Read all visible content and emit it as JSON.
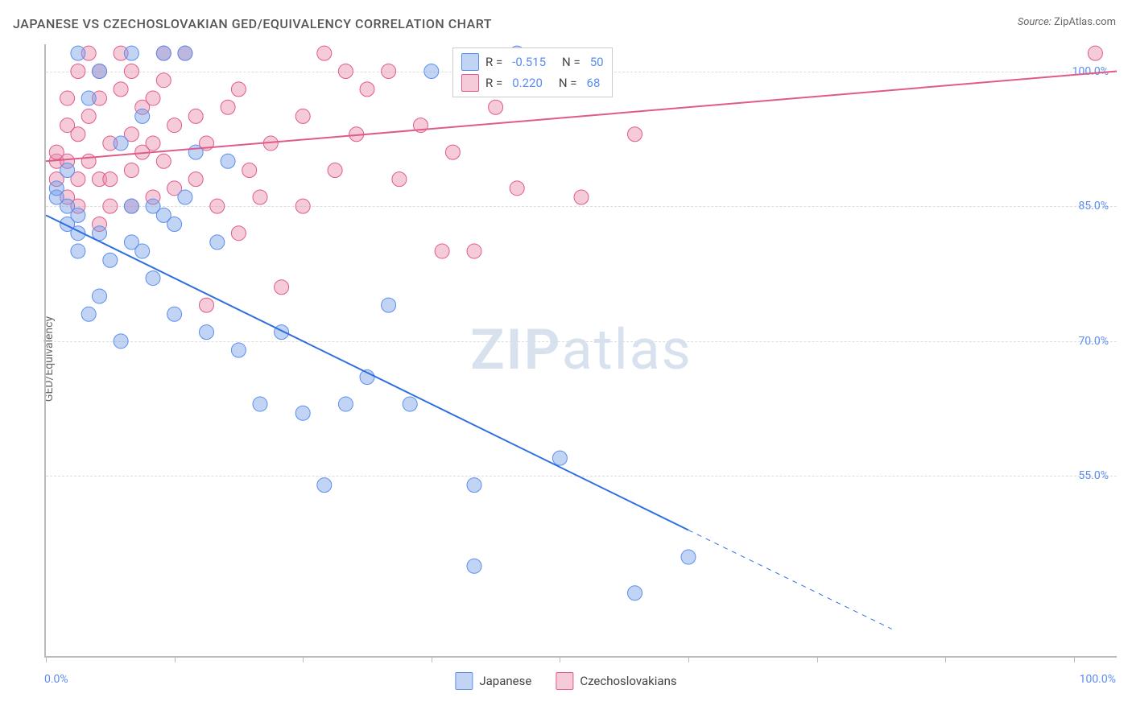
{
  "meta": {
    "title": "JAPANESE VS CZECHOSLOVAKIAN GED/EQUIVALENCY CORRELATION CHART",
    "source_label": "Source:",
    "source_name": "ZipAtlas.com",
    "watermark_a": "ZIP",
    "watermark_b": "atlas"
  },
  "chart": {
    "type": "scatter",
    "ylabel": "GED/Equivalency",
    "xlim": [
      0,
      100
    ],
    "ylim": [
      35,
      103
    ],
    "x_tick_positions": [
      0,
      12,
      24,
      36,
      48,
      60,
      72,
      84,
      96
    ],
    "x_tick_labels": {
      "left": "0.0%",
      "right": "100.0%"
    },
    "y_ticks": [
      {
        "v": 55,
        "label": "55.0%"
      },
      {
        "v": 70,
        "label": "70.0%"
      },
      {
        "v": 85,
        "label": "85.0%"
      },
      {
        "v": 100,
        "label": "100.0%"
      }
    ],
    "background_color": "#ffffff",
    "grid_color": "#dddddd",
    "axis_color": "#bbbbbb",
    "tick_label_color": "#5b8def",
    "marker_radius": 9,
    "marker_stroke_width": 1,
    "series": {
      "japanese": {
        "label": "Japanese",
        "color_fill": "rgba(120,160,230,0.45)",
        "color_stroke": "#5b8def",
        "R": "-0.515",
        "N": "50",
        "trend": {
          "color": "#2d6fe0",
          "width": 2,
          "x1": 0,
          "y1": 84,
          "x2": 60,
          "y2": 49,
          "dash_x2": 79,
          "dash_y2": 38
        },
        "points": [
          [
            1,
            86
          ],
          [
            1,
            87
          ],
          [
            2,
            85
          ],
          [
            2,
            89
          ],
          [
            3,
            102
          ],
          [
            3,
            84
          ],
          [
            3,
            80
          ],
          [
            4,
            97
          ],
          [
            5,
            100
          ],
          [
            5,
            82
          ],
          [
            5,
            75
          ],
          [
            6,
            79
          ],
          [
            7,
            92
          ],
          [
            8,
            102
          ],
          [
            8,
            81
          ],
          [
            8,
            85
          ],
          [
            9,
            95
          ],
          [
            9,
            80
          ],
          [
            10,
            77
          ],
          [
            10,
            85
          ],
          [
            11,
            102
          ],
          [
            11,
            84
          ],
          [
            12,
            83
          ],
          [
            12,
            73
          ],
          [
            13,
            102
          ],
          [
            13,
            86
          ],
          [
            14,
            91
          ],
          [
            15,
            71
          ],
          [
            16,
            81
          ],
          [
            17,
            90
          ],
          [
            18,
            69
          ],
          [
            4,
            73
          ],
          [
            20,
            63
          ],
          [
            22,
            71
          ],
          [
            24,
            62
          ],
          [
            26,
            54
          ],
          [
            28,
            63
          ],
          [
            30,
            66
          ],
          [
            32,
            74
          ],
          [
            34,
            63
          ],
          [
            36,
            100
          ],
          [
            40,
            45
          ],
          [
            40,
            54
          ],
          [
            44,
            102
          ],
          [
            48,
            57
          ],
          [
            55,
            42
          ],
          [
            60,
            46
          ],
          [
            7,
            70
          ],
          [
            2,
            83
          ],
          [
            3,
            82
          ]
        ]
      },
      "czech": {
        "label": "Czechoslovakians",
        "color_fill": "rgba(235,140,170,0.45)",
        "color_stroke": "#e05a8a",
        "R": "0.220",
        "N": "68",
        "trend": {
          "color": "#e05a8a",
          "width": 2,
          "x1": 0,
          "y1": 90,
          "x2": 100,
          "y2": 100
        },
        "points": [
          [
            1,
            88
          ],
          [
            1,
            90
          ],
          [
            1,
            91
          ],
          [
            2,
            94
          ],
          [
            2,
            97
          ],
          [
            2,
            90
          ],
          [
            2,
            86
          ],
          [
            3,
            93
          ],
          [
            3,
            88
          ],
          [
            3,
            100
          ],
          [
            4,
            102
          ],
          [
            4,
            95
          ],
          [
            4,
            90
          ],
          [
            5,
            97
          ],
          [
            5,
            100
          ],
          [
            5,
            88
          ],
          [
            6,
            92
          ],
          [
            6,
            88
          ],
          [
            7,
            98
          ],
          [
            7,
            102
          ],
          [
            8,
            85
          ],
          [
            8,
            100
          ],
          [
            8,
            89
          ],
          [
            9,
            96
          ],
          [
            9,
            91
          ],
          [
            10,
            92
          ],
          [
            10,
            97
          ],
          [
            10,
            86
          ],
          [
            11,
            99
          ],
          [
            11,
            102
          ],
          [
            12,
            94
          ],
          [
            12,
            87
          ],
          [
            13,
            102
          ],
          [
            14,
            88
          ],
          [
            14,
            95
          ],
          [
            15,
            92
          ],
          [
            16,
            85
          ],
          [
            17,
            96
          ],
          [
            18,
            98
          ],
          [
            19,
            89
          ],
          [
            20,
            86
          ],
          [
            21,
            92
          ],
          [
            22,
            76
          ],
          [
            24,
            95
          ],
          [
            26,
            102
          ],
          [
            27,
            89
          ],
          [
            28,
            100
          ],
          [
            29,
            93
          ],
          [
            30,
            98
          ],
          [
            32,
            100
          ],
          [
            33,
            88
          ],
          [
            35,
            94
          ],
          [
            37,
            80
          ],
          [
            38,
            91
          ],
          [
            40,
            80
          ],
          [
            42,
            96
          ],
          [
            18,
            82
          ],
          [
            15,
            74
          ],
          [
            6,
            85
          ],
          [
            5,
            83
          ],
          [
            3,
            85
          ],
          [
            24,
            85
          ],
          [
            8,
            93
          ],
          [
            11,
            90
          ],
          [
            98,
            102
          ],
          [
            50,
            86
          ],
          [
            55,
            93
          ],
          [
            44,
            87
          ]
        ]
      }
    },
    "legend_bottom": [
      "Japanese",
      "Czechoslovakians"
    ]
  }
}
